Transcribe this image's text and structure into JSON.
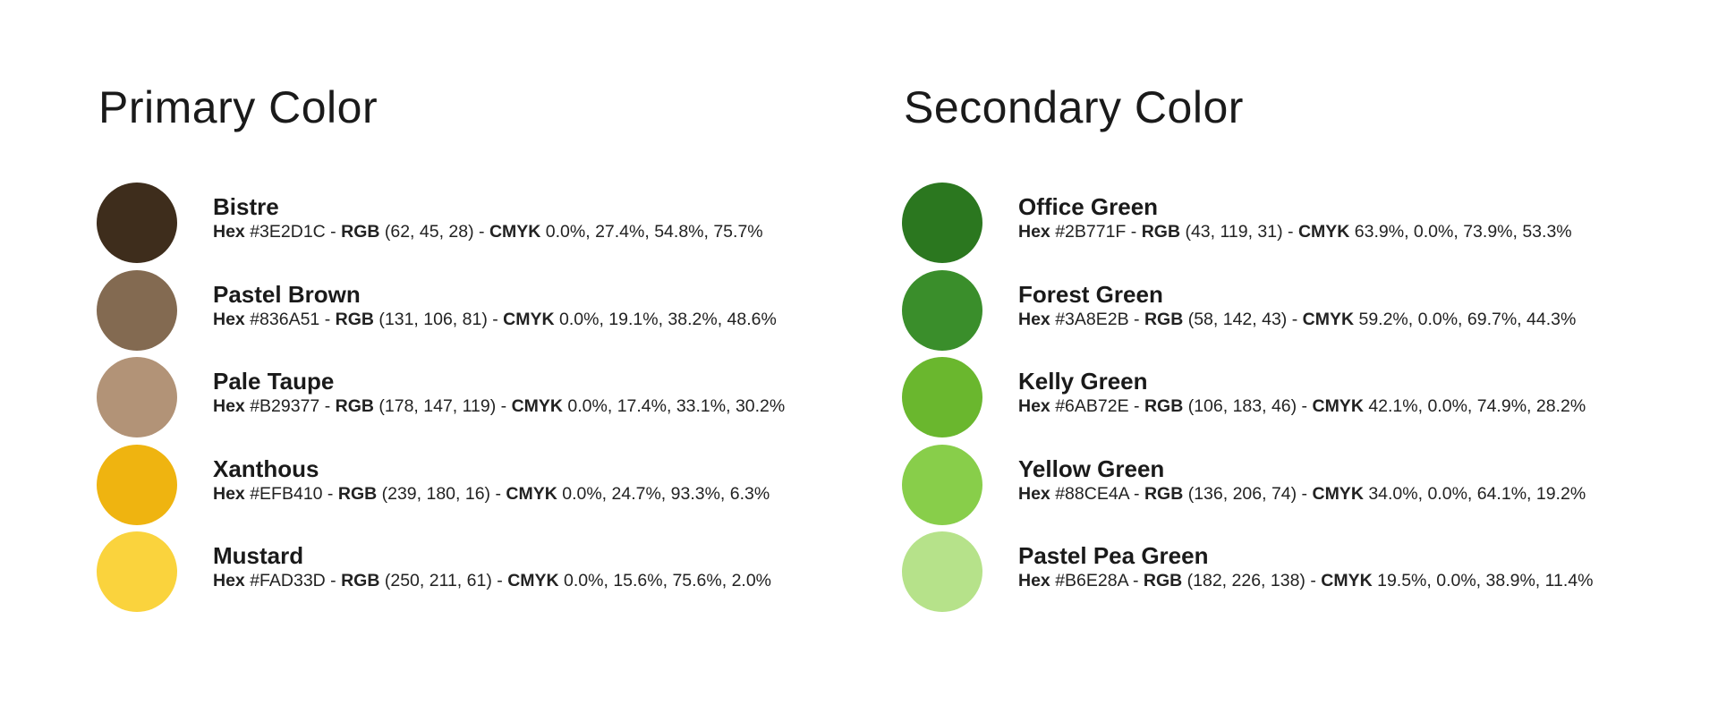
{
  "primary": {
    "title": "Primary Color",
    "colors": [
      {
        "name": "Bistre",
        "hex": "#3E2D1C",
        "rgb": "(62, 45, 28)",
        "cmyk": "0.0%, 27.4%, 54.8%, 75.7%"
      },
      {
        "name": "Pastel Brown",
        "hex": "#836A51",
        "rgb": "(131, 106, 81)",
        "cmyk": "0.0%, 19.1%, 38.2%, 48.6%"
      },
      {
        "name": "Pale Taupe",
        "hex": "#B29377",
        "rgb": "(178, 147, 119)",
        "cmyk": "0.0%, 17.4%, 33.1%, 30.2%"
      },
      {
        "name": "Xanthous",
        "hex": "#EFB410",
        "rgb": "(239, 180, 16)",
        "cmyk": "0.0%, 24.7%, 93.3%, 6.3%"
      },
      {
        "name": "Mustard",
        "hex": "#FAD33D",
        "rgb": "(250, 211, 61)",
        "cmyk": "0.0%, 15.6%, 75.6%, 2.0%"
      }
    ]
  },
  "secondary": {
    "title": "Secondary Color",
    "colors": [
      {
        "name": "Office Green",
        "hex": "#2B771F",
        "rgb": "(43, 119, 31)",
        "cmyk": "63.9%, 0.0%, 73.9%, 53.3%"
      },
      {
        "name": "Forest Green",
        "hex": "#3A8E2B",
        "rgb": "(58, 142, 43)",
        "cmyk": "59.2%, 0.0%, 69.7%, 44.3%"
      },
      {
        "name": "Kelly Green",
        "hex": "#6AB72E",
        "rgb": "(106, 183, 46)",
        "cmyk": "42.1%, 0.0%, 74.9%, 28.2%"
      },
      {
        "name": "Yellow Green",
        "hex": "#88CE4A",
        "rgb": "(136, 206, 74)",
        "cmyk": "34.0%, 0.0%, 64.1%, 19.2%"
      },
      {
        "name": "Pastel Pea Green",
        "hex": "#B6E28A",
        "rgb": "(182, 226, 138)",
        "cmyk": "19.5%, 0.0%, 38.9%, 11.4%"
      }
    ]
  },
  "labels": {
    "hex": "Hex",
    "rgb": "RGB",
    "cmyk": "CMYK",
    "separator": " - "
  }
}
